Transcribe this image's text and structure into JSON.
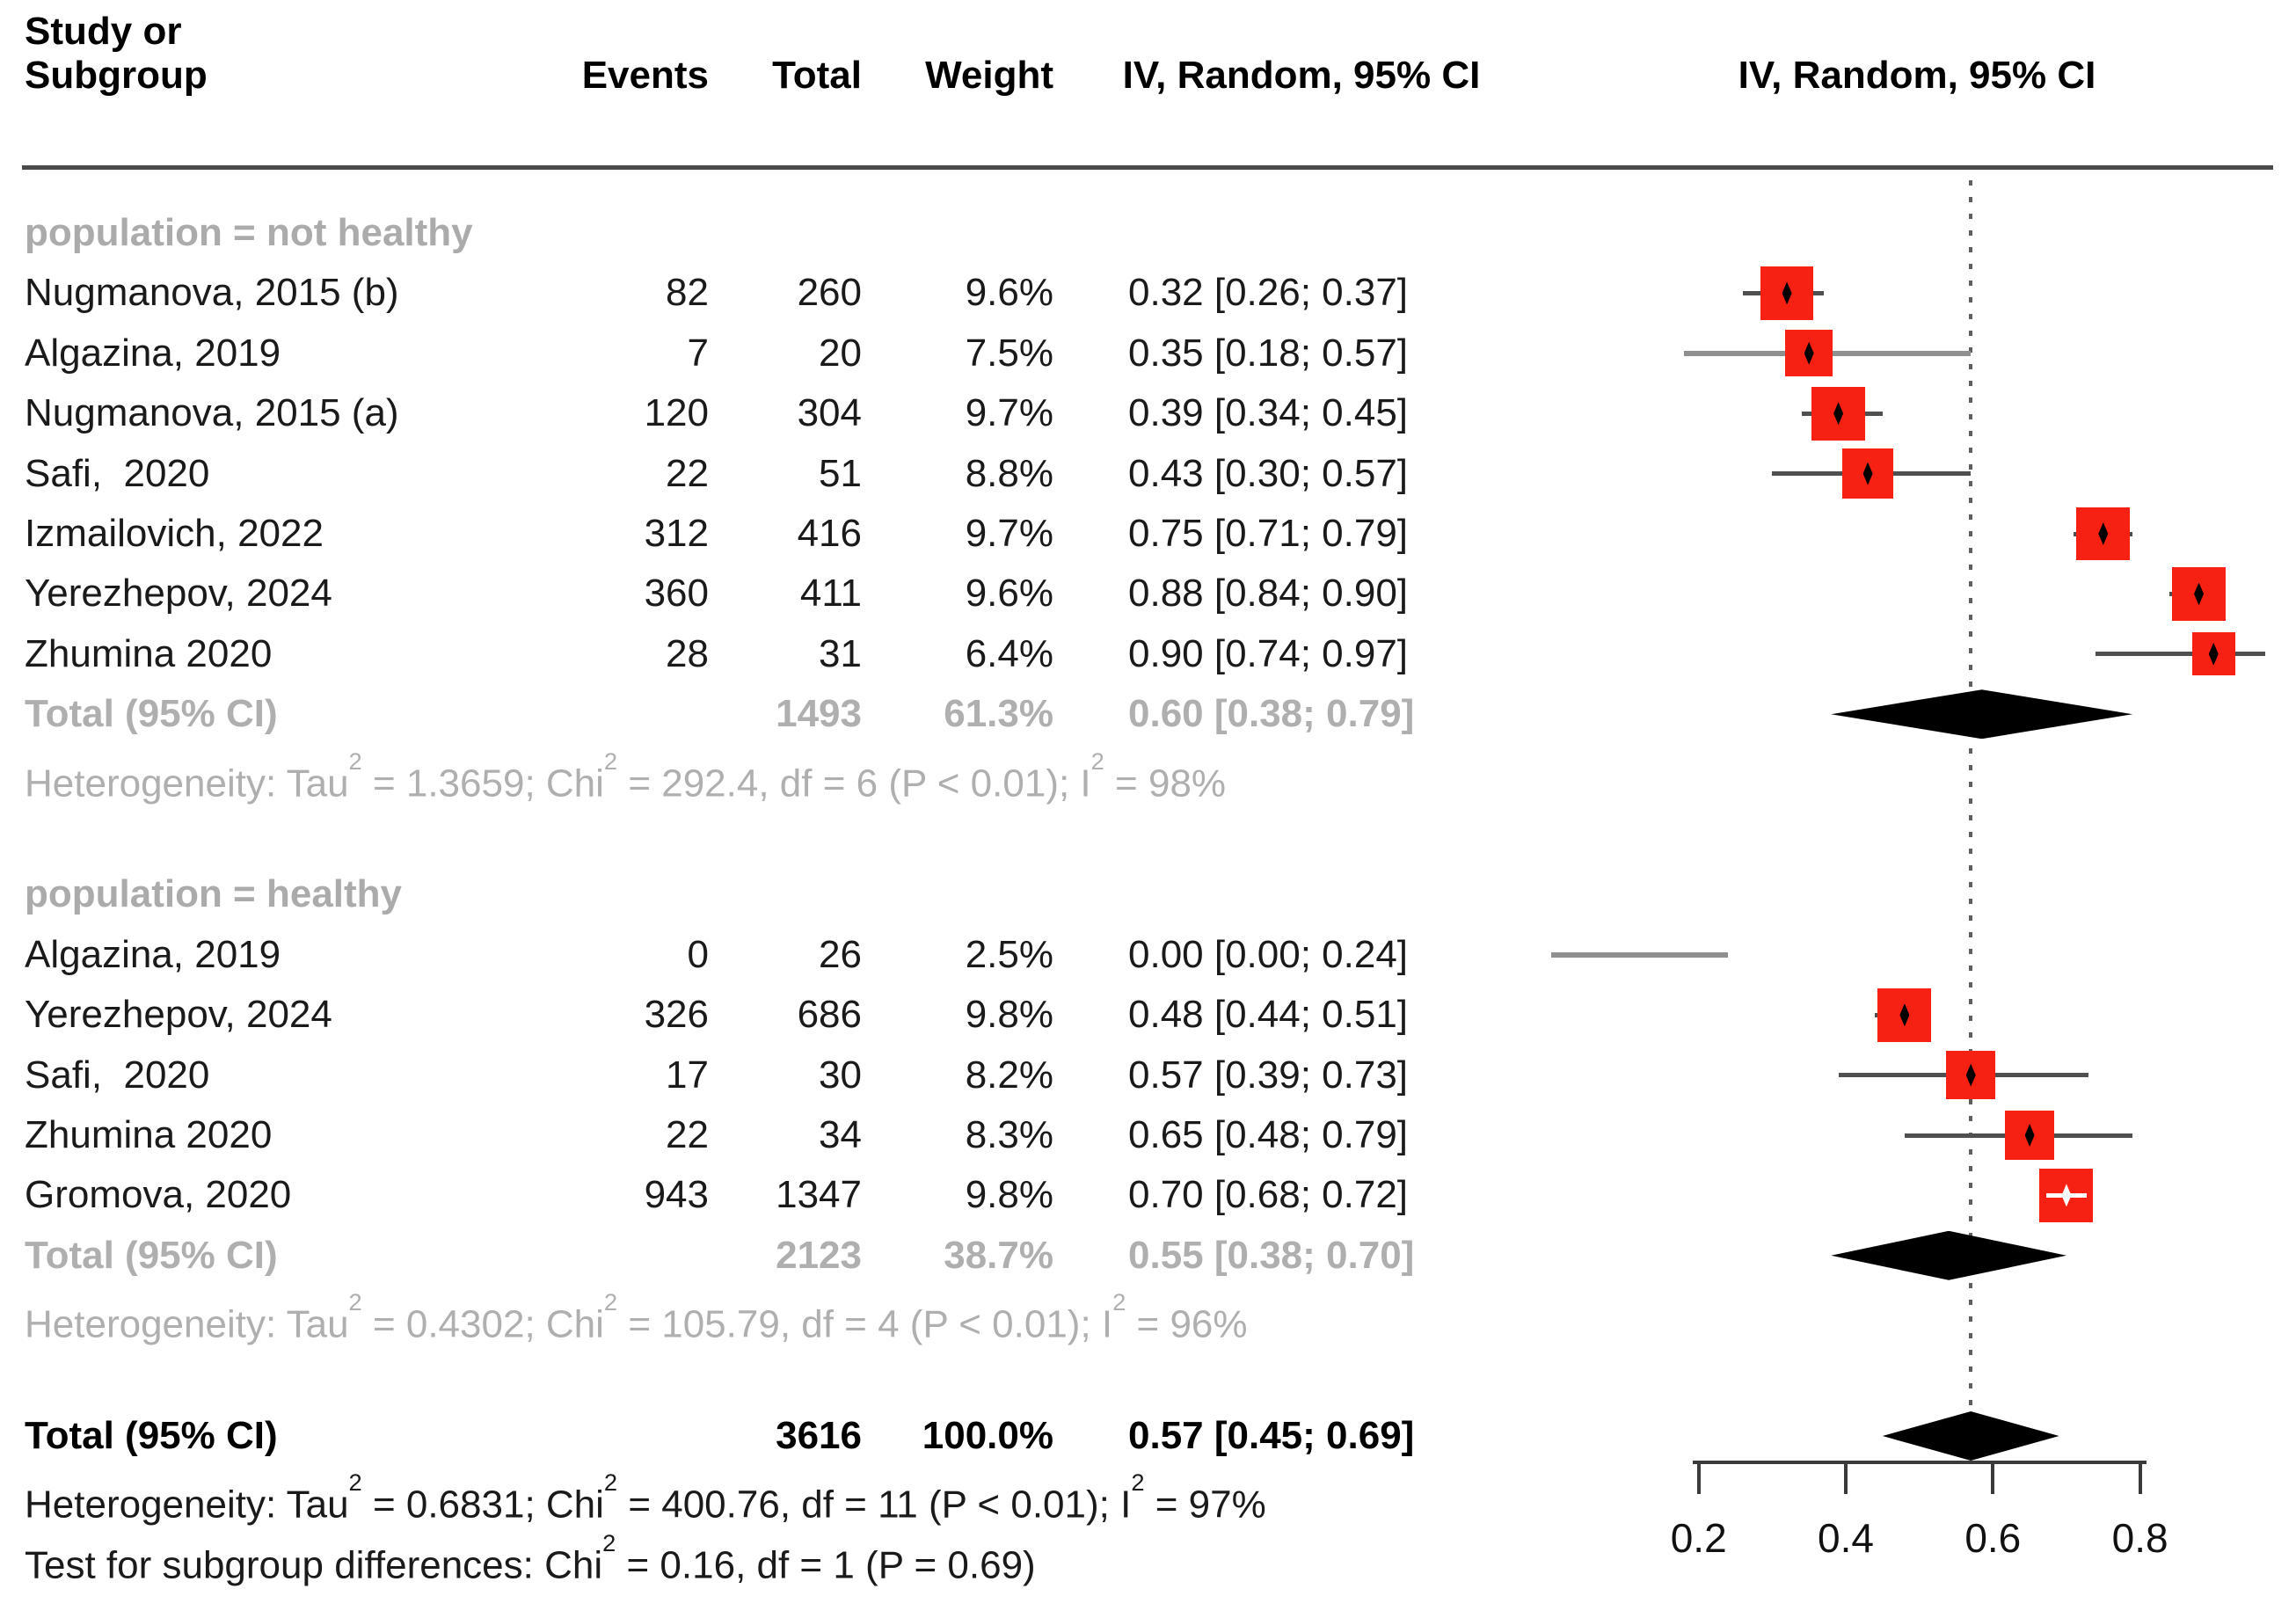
{
  "header": {
    "study_line1": "Study or",
    "study_line2": "Subgroup",
    "events": "Events",
    "total": "Total",
    "weight": "Weight",
    "ci": "IV, Random, 95% CI",
    "plot_ci": "IV, Random, 95% CI"
  },
  "colors": {
    "square_red": "#F62113",
    "gray_text": "#ABABAB",
    "ci_line": "#4f4f4f",
    "ci_line_light": "#8f8f8f",
    "axis": "#3a3a3a",
    "diamond": "#000000"
  },
  "chart_data": {
    "type": "forest",
    "effect_label": "IV, Random, 95% CI",
    "x_axis": {
      "ticks": [
        0.2,
        0.4,
        0.6,
        0.8
      ],
      "tick_labels": [
        "0.2",
        "0.4",
        "0.6",
        "0.8"
      ],
      "range_shown": [
        0.2,
        0.8
      ]
    },
    "reference_line": 0.57,
    "rows": [
      {
        "type": "group",
        "label": "population = not healthy"
      },
      {
        "type": "study",
        "label": "Nugmanova, 2015 (b)",
        "events": "82",
        "total": "260",
        "weight": "9.6%",
        "ci_text": "0.32 [0.26; 0.37]",
        "mean": 0.32,
        "lo": 0.26,
        "hi": 0.37,
        "weight_val": 9.6
      },
      {
        "type": "study",
        "label": "Algazina, 2019",
        "events": "7",
        "total": "20",
        "weight": "7.5%",
        "ci_text": "0.35 [0.18; 0.57]",
        "mean": 0.35,
        "lo": 0.18,
        "hi": 0.57,
        "weight_val": 7.5,
        "light_line": true
      },
      {
        "type": "study",
        "label": "Nugmanova, 2015 (a)",
        "events": "120",
        "total": "304",
        "weight": "9.7%",
        "ci_text": "0.39 [0.34; 0.45]",
        "mean": 0.39,
        "lo": 0.34,
        "hi": 0.45,
        "weight_val": 9.7
      },
      {
        "type": "study",
        "label": "Safi,  2020",
        "events": "22",
        "total": "51",
        "weight": "8.8%",
        "ci_text": "0.43 [0.30; 0.57]",
        "mean": 0.43,
        "lo": 0.3,
        "hi": 0.57,
        "weight_val": 8.8
      },
      {
        "type": "study",
        "label": "Izmailovich, 2022",
        "events": "312",
        "total": "416",
        "weight": "9.7%",
        "ci_text": "0.75 [0.71; 0.79]",
        "mean": 0.75,
        "lo": 0.71,
        "hi": 0.79,
        "weight_val": 9.7
      },
      {
        "type": "study",
        "label": "Yerezhepov, 2024",
        "events": "360",
        "total": "411",
        "weight": "9.6%",
        "ci_text": "0.88 [0.84; 0.90]",
        "mean": 0.88,
        "lo": 0.84,
        "hi": 0.9,
        "weight_val": 9.6
      },
      {
        "type": "study",
        "label": "Zhumina 2020",
        "events": "28",
        "total": "31",
        "weight": "6.4%",
        "ci_text": "0.90 [0.74; 0.97]",
        "mean": 0.9,
        "lo": 0.74,
        "hi": 0.97,
        "weight_val": 6.4
      },
      {
        "type": "subtotal",
        "label": "Total (95% CI)",
        "total": "1493",
        "weight": "61.3%",
        "ci_text": "0.60 [0.38; 0.79]",
        "mean": 0.6,
        "lo": 0.38,
        "hi": 0.79
      },
      {
        "type": "note",
        "gray": true,
        "label": "Heterogeneity: Tau² = 1.3659; Chi² = 292.4, df = 6 (P < 0.01); I² = 98%"
      },
      {
        "type": "spacer"
      },
      {
        "type": "group",
        "label": "population = healthy"
      },
      {
        "type": "study",
        "label": "Algazina, 2019",
        "events": "0",
        "total": "26",
        "weight": "2.5%",
        "ci_text": "0.00 [0.00; 0.24]",
        "mean": 0.0,
        "lo": 0.0,
        "hi": 0.24,
        "weight_val": 2.5,
        "light_line": true,
        "line_only": true
      },
      {
        "type": "study",
        "label": "Yerezhepov, 2024",
        "events": "326",
        "total": "686",
        "weight": "9.8%",
        "ci_text": "0.48 [0.44; 0.51]",
        "mean": 0.48,
        "lo": 0.44,
        "hi": 0.51,
        "weight_val": 9.8
      },
      {
        "type": "study",
        "label": "Safi,  2020",
        "events": "17",
        "total": "30",
        "weight": "8.2%",
        "ci_text": "0.57 [0.39; 0.73]",
        "mean": 0.57,
        "lo": 0.39,
        "hi": 0.73,
        "weight_val": 8.2
      },
      {
        "type": "study",
        "label": "Zhumina 2020",
        "events": "22",
        "total": "34",
        "weight": "8.3%",
        "ci_text": "0.65 [0.48; 0.79]",
        "mean": 0.65,
        "lo": 0.48,
        "hi": 0.79,
        "weight_val": 8.3
      },
      {
        "type": "study",
        "label": "Gromova, 2020",
        "events": "943",
        "total": "1347",
        "weight": "9.8%",
        "ci_text": "0.70 [0.68; 0.72]",
        "mean": 0.7,
        "lo": 0.68,
        "hi": 0.72,
        "weight_val": 9.8,
        "white_ci": true
      },
      {
        "type": "subtotal",
        "label": "Total (95% CI)",
        "total": "2123",
        "weight": "38.7%",
        "ci_text": "0.55 [0.38; 0.70]",
        "mean": 0.55,
        "lo": 0.38,
        "hi": 0.7
      },
      {
        "type": "note",
        "gray": true,
        "label": "Heterogeneity: Tau² = 0.4302; Chi² = 105.79, df = 4 (P < 0.01); I² = 96%"
      },
      {
        "type": "spacer"
      },
      {
        "type": "total",
        "label": "Total (95% CI)",
        "total": "3616",
        "weight": "100.0%",
        "ci_text": "0.57 [0.45; 0.69]",
        "mean": 0.57,
        "lo": 0.45,
        "hi": 0.69
      },
      {
        "type": "note",
        "gray": false,
        "label": "Heterogeneity: Tau² = 0.6831; Chi² = 400.76, df = 11 (P < 0.01); I² = 97%"
      },
      {
        "type": "note",
        "gray": false,
        "label": "Test for subgroup differences: Chi² = 0.16, df = 1 (P = 0.69)"
      }
    ]
  }
}
